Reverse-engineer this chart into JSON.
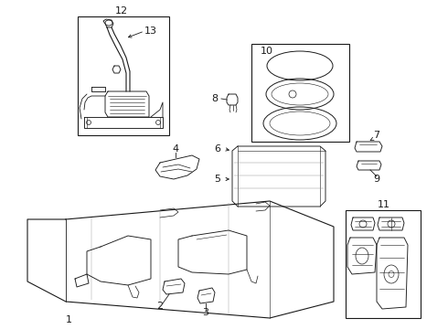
{
  "bg_color": "#ffffff",
  "line_color": "#1a1a1a",
  "fig_width": 4.9,
  "fig_height": 3.6,
  "dpi": 100,
  "label_fontsize": 7.5,
  "lw": 0.65
}
